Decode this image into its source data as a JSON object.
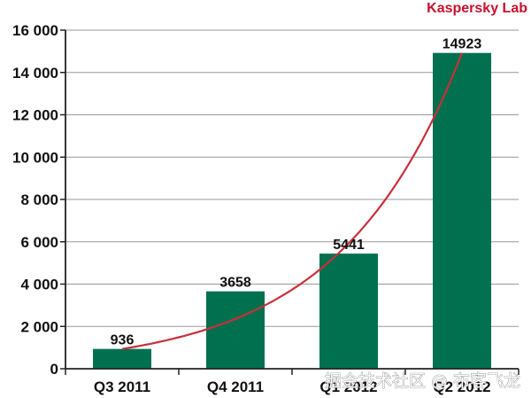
{
  "chart_data": {
    "type": "bar",
    "title": "",
    "xlabel": "",
    "ylabel": "",
    "categories": [
      "Q3 2011",
      "Q4 2011",
      "Q1 2012",
      "Q2 2012"
    ],
    "values": [
      936,
      3658,
      5441,
      14923
    ],
    "value_labels": [
      "936",
      "3658",
      "5441",
      "14923"
    ],
    "ylim": [
      0,
      16000
    ],
    "y_ticks": [
      0,
      2000,
      4000,
      6000,
      8000,
      10000,
      12000,
      14000,
      16000
    ],
    "y_tick_labels": [
      "0",
      "2 000",
      "4 000",
      "6 000",
      "8 000",
      "10 000",
      "12 000",
      "14 000",
      "16 000"
    ],
    "grid": true,
    "trend_line": true
  },
  "brand": "Kaspersky Lab",
  "watermark": "掘金技术社区 @ 布客飞龙",
  "colors": {
    "bar": "#00704f",
    "trend": "#c8303a",
    "brand": "#c8102e",
    "grid": "#999999",
    "axis": "#222222"
  }
}
